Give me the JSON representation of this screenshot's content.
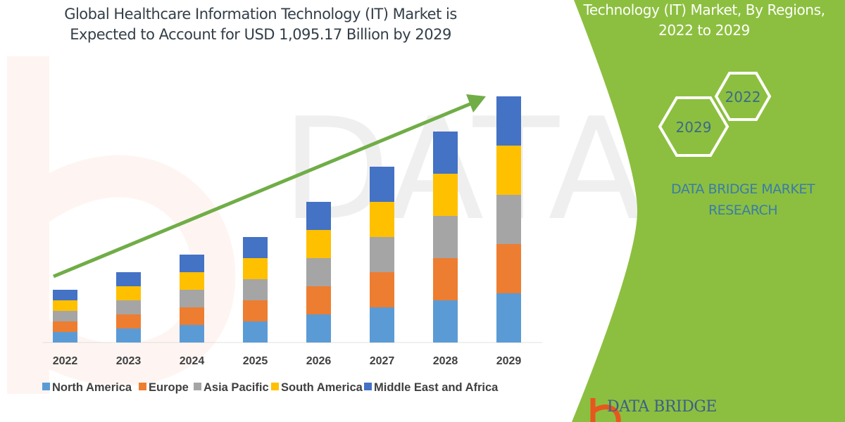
{
  "header": {
    "title_line1": "Global Healthcare Information Technology (IT) Market is",
    "title_line2": "Expected to Account for USD 1,095.17 Billion by 2029"
  },
  "side_panel": {
    "title_line1": "Technology (IT) Market, By Regions,",
    "title_line2": "2022 to 2029",
    "hex_start": "2022",
    "hex_end": "2029",
    "brand_line1": "DATA BRIDGE MARKET",
    "brand_line2": "RESEARCH",
    "logo_text": "DATA BRIDGE",
    "panel_color": "#8cbf3f"
  },
  "chart_data": {
    "type": "bar",
    "stacked": true,
    "title": "",
    "xlabel": "",
    "ylabel": "",
    "y_axis_shown": false,
    "grid": false,
    "legend_position": "bottom",
    "trend_arrow": true,
    "trend_arrow_color": "#70ad47",
    "categories": [
      "2022",
      "2023",
      "2024",
      "2025",
      "2026",
      "2027",
      "2028",
      "2029"
    ],
    "series": [
      {
        "name": "North America",
        "color": "#5b9bd5",
        "values": [
          15,
          20,
          25,
          30,
          40,
          50,
          60,
          70
        ]
      },
      {
        "name": "Europe",
        "color": "#ed7d31",
        "values": [
          15,
          20,
          25,
          30,
          40,
          50,
          60,
          70
        ]
      },
      {
        "name": "Asia Pacific",
        "color": "#a5a5a5",
        "values": [
          15,
          20,
          25,
          30,
          40,
          50,
          60,
          70
        ]
      },
      {
        "name": "South America",
        "color": "#ffc000",
        "values": [
          15,
          20,
          25,
          30,
          40,
          50,
          60,
          70
        ]
      },
      {
        "name": "Middle East and Africa",
        "color": "#4472c4",
        "values": [
          15,
          20,
          25,
          30,
          40,
          50,
          60,
          70
        ]
      }
    ]
  }
}
